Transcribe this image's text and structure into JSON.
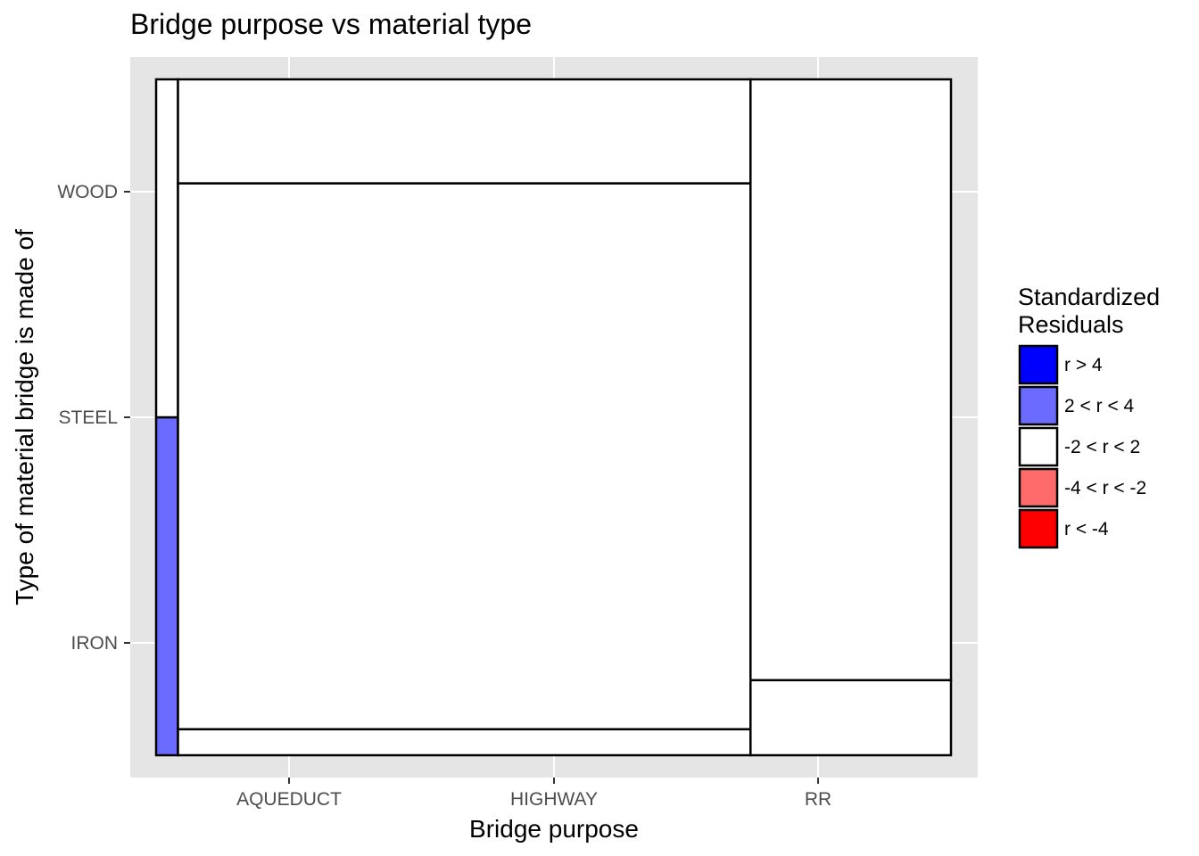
{
  "chart_data": {
    "type": "mosaic",
    "title": "Bridge purpose vs material type",
    "xlabel": "Bridge purpose",
    "ylabel": "Type of material bridge is made of",
    "categories": [
      "AQUEDUCT",
      "HIGHWAY",
      "RR"
    ],
    "y_ticks": [
      "IRON",
      "STEEL",
      "WOOD"
    ],
    "column_widths": [
      0.0275,
      0.7203,
      0.2522
    ],
    "cells": [
      {
        "purpose": "AQUEDUCT",
        "material": "IRON",
        "fraction": 0.0,
        "residual_class": "-2 < r < 2"
      },
      {
        "purpose": "AQUEDUCT",
        "material": "STEEL",
        "fraction": 0.5,
        "residual_class": "2 < r < 4"
      },
      {
        "purpose": "AQUEDUCT",
        "material": "WOOD",
        "fraction": 0.5,
        "residual_class": "-2 < r < 2"
      },
      {
        "purpose": "HIGHWAY",
        "material": "IRON",
        "fraction": 0.0,
        "residual_class": "-2 < r < 2"
      },
      {
        "purpose": "HIGHWAY",
        "material": "STEEL",
        "fraction": 0.0385,
        "residual_class": "-2 < r < 2"
      },
      {
        "purpose": "HIGHWAY",
        "material": "WOOD",
        "fraction": 0.8077,
        "residual_class": "-2 < r < 2"
      },
      {
        "purpose": "HIGHWAY",
        "material": "WOOD",
        "fraction": 0.1538,
        "residual_class": "-2 < r < 2"
      },
      {
        "purpose": "RR",
        "material": "IRON",
        "fraction": 0.1111,
        "residual_class": "-2 < r < 2"
      },
      {
        "purpose": "RR",
        "material": "STEEL",
        "fraction": 0.8889,
        "residual_class": "-2 < r < 2"
      }
    ],
    "legend": {
      "title": "Standardized\nResiduals",
      "title_lines": [
        "Standardized",
        "Residuals"
      ],
      "placement": "right",
      "items": [
        {
          "label": "r > 4",
          "color": "#0000ff"
        },
        {
          "label": "2 < r < 4",
          "color": "#6b6bff"
        },
        {
          "label": "-2 < r < 2",
          "color": "#ffffff"
        },
        {
          "label": "-4 < r < -2",
          "color": "#ff6b6b"
        },
        {
          "label": "r < -4",
          "color": "#ff0000"
        }
      ]
    },
    "grid": true,
    "panel_background": "#e5e5e5"
  }
}
